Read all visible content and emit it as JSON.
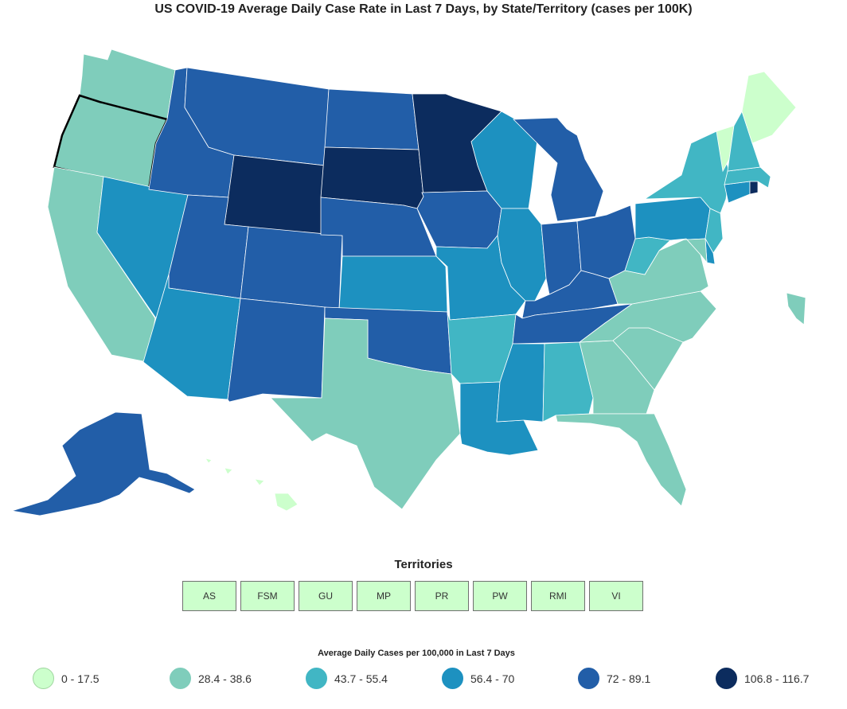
{
  "title": "US COVID-19 Average Daily Case Rate in Last 7 Days, by State/Territory (cases per 100K)",
  "colors": {
    "bin0": "#ccffcc",
    "bin1": "#7fcdbb",
    "bin2": "#41b6c4",
    "bin3": "#1d91c0",
    "bin4": "#225ea8",
    "bin5": "#0c2c5e"
  },
  "territories": {
    "title": "Territories",
    "items": [
      "AS",
      "FSM",
      "GU",
      "MP",
      "PR",
      "PW",
      "RMI",
      "VI"
    ]
  },
  "legend": {
    "title": "Average Daily Cases per 100,000 in Last 7 Days",
    "bins": [
      {
        "label": "0 - 17.5"
      },
      {
        "label": "28.4 - 38.6"
      },
      {
        "label": "43.7 - 55.4"
      },
      {
        "label": "56.4 - 70"
      },
      {
        "label": "72 - 89.1"
      },
      {
        "label": "106.8 - 116.7"
      }
    ]
  },
  "states": {
    "WA": 1,
    "OR": 1,
    "CA": 1,
    "NV": 3,
    "ID": 4,
    "MT": 4,
    "WY": 5,
    "UT": 4,
    "AZ": 3,
    "CO": 4,
    "NM": 4,
    "ND": 4,
    "SD": 5,
    "NE": 4,
    "KS": 3,
    "OK": 4,
    "TX": 1,
    "MN": 5,
    "IA": 4,
    "MO": 3,
    "AR": 2,
    "LA": 3,
    "WI": 3,
    "IL": 3,
    "MI": 4,
    "IN": 4,
    "OH": 4,
    "KY": 4,
    "TN": 4,
    "MS": 3,
    "AL": 2,
    "GA": 1,
    "FL": 1,
    "SC": 1,
    "NC": 1,
    "VA": 1,
    "WV": 2,
    "PA": 3,
    "NY": 2,
    "NJ": 2,
    "DE": 3,
    "MD": 1,
    "CT": 3,
    "RI": 5,
    "MA": 2,
    "VT": 0,
    "NH": 2,
    "ME": 0,
    "AK": 4,
    "HI": 0,
    "PR": 1
  },
  "selected_state": "OR"
}
